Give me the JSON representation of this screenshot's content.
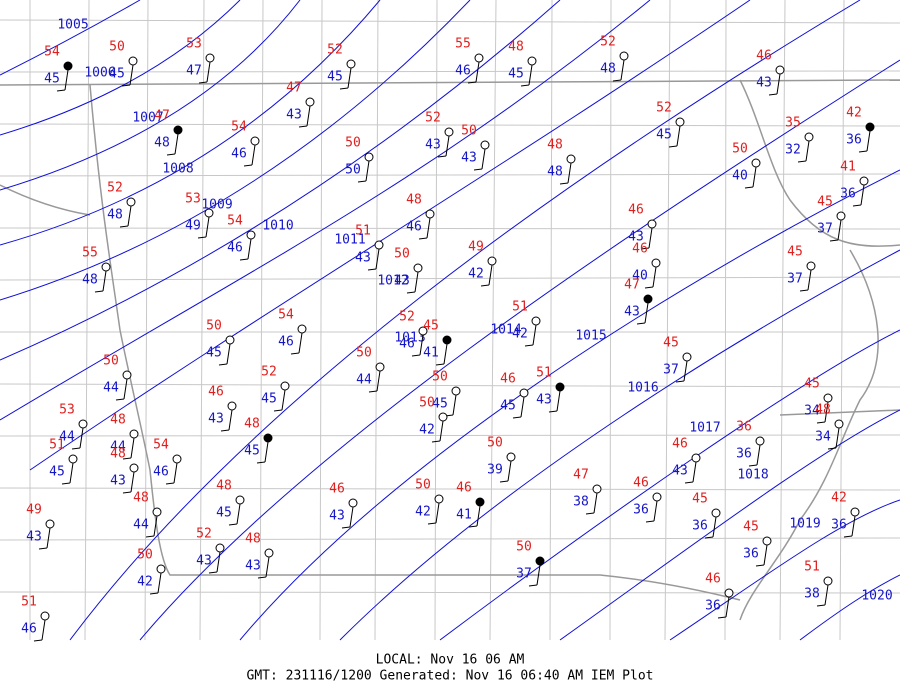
{
  "map": {
    "isobars": [
      "1005",
      "1006",
      "1007",
      "1008",
      "1009",
      "1010",
      "1011",
      "1012",
      "1013",
      "1014",
      "1015",
      "1016",
      "1017",
      "1018",
      "1019",
      "1020"
    ],
    "stations": [
      {
        "temp": 54,
        "dew": 45
      },
      {
        "temp": 50,
        "dew": 45
      },
      {
        "temp": 53,
        "dew": 47
      },
      {
        "temp": 47,
        "dew": 43
      },
      {
        "temp": 52,
        "dew": 45
      },
      {
        "temp": 55,
        "dew": 46
      },
      {
        "temp": 48,
        "dew": 45
      },
      {
        "temp": 52,
        "dew": 48
      },
      {
        "temp": 46,
        "dew": 43
      },
      {
        "temp": 47,
        "dew": 48
      },
      {
        "temp": 54,
        "dew": 46
      },
      {
        "temp": 50,
        "dew": 50
      },
      {
        "temp": 52,
        "dew": 43
      },
      {
        "temp": 50,
        "dew": 43
      },
      {
        "temp": 48,
        "dew": 48
      },
      {
        "temp": 52,
        "dew": 45
      },
      {
        "temp": 50,
        "dew": 40
      },
      {
        "temp": 35,
        "dew": 32
      },
      {
        "temp": 42,
        "dew": 36
      },
      {
        "temp": 52,
        "dew": 48
      },
      {
        "temp": 53,
        "dew": 49
      },
      {
        "temp": 54,
        "dew": 46
      },
      {
        "temp": 48,
        "dew": 46
      },
      {
        "temp": 41,
        "dew": 36
      },
      {
        "temp": 45,
        "dew": 37
      },
      {
        "temp": 46,
        "dew": 43
      },
      {
        "temp": 46,
        "dew": 40
      },
      {
        "temp": 47,
        "dew": 43
      },
      {
        "temp": 55,
        "dew": 48
      },
      {
        "temp": 51,
        "dew": 43
      },
      {
        "temp": 50,
        "dew": 43
      },
      {
        "temp": 49,
        "dew": 42
      },
      {
        "temp": 45,
        "dew": 37
      },
      {
        "temp": 54,
        "dew": 46
      },
      {
        "temp": 50,
        "dew": 45
      },
      {
        "temp": 52,
        "dew": 46
      },
      {
        "temp": 45,
        "dew": 41
      },
      {
        "temp": 51,
        "dew": 42
      },
      {
        "temp": 50,
        "dew": 44
      },
      {
        "temp": 50,
        "dew": 44
      },
      {
        "temp": 52,
        "dew": 45
      },
      {
        "temp": 46,
        "dew": 43
      },
      {
        "temp": 50,
        "dew": 45
      },
      {
        "temp": 50,
        "dew": 42
      },
      {
        "temp": 46,
        "dew": 45
      },
      {
        "temp": 51,
        "dew": 43
      },
      {
        "temp": 45,
        "dew": 37
      },
      {
        "temp": 45,
        "dew": 34
      },
      {
        "temp": 48,
        "dew": 34
      },
      {
        "temp": 53,
        "dew": 44
      },
      {
        "temp": 51,
        "dew": 45
      },
      {
        "temp": 48,
        "dew": 44
      },
      {
        "temp": 54,
        "dew": 46
      },
      {
        "temp": 48,
        "dew": 43
      },
      {
        "temp": 48,
        "dew": 45
      },
      {
        "temp": 36,
        "dew": 36
      },
      {
        "temp": 46,
        "dew": 43
      },
      {
        "temp": 50,
        "dew": 39
      },
      {
        "temp": 48,
        "dew": 44
      },
      {
        "temp": 49,
        "dew": 43
      },
      {
        "temp": 48,
        "dew": 45
      },
      {
        "temp": 46,
        "dew": 43
      },
      {
        "temp": 50,
        "dew": 42
      },
      {
        "temp": 46,
        "dew": 41
      },
      {
        "temp": 47,
        "dew": 38
      },
      {
        "temp": 46,
        "dew": 36
      },
      {
        "temp": 45,
        "dew": 36
      },
      {
        "temp": 42,
        "dew": 36
      },
      {
        "temp": 52,
        "dew": 43
      },
      {
        "temp": 48,
        "dew": 43
      },
      {
        "temp": 50,
        "dew": 42
      },
      {
        "temp": 45,
        "dew": 36
      },
      {
        "temp": 50,
        "dew": 37
      },
      {
        "temp": 46,
        "dew": 36
      },
      {
        "temp": 51,
        "dew": 38
      },
      {
        "temp": 51,
        "dew": 46
      }
    ],
    "footer": {
      "local": "LOCAL: Nov 16 06 AM",
      "gmt": "GMT: 231116/1200 Generated: Nov 16 06:40 AM IEM Plot"
    }
  }
}
